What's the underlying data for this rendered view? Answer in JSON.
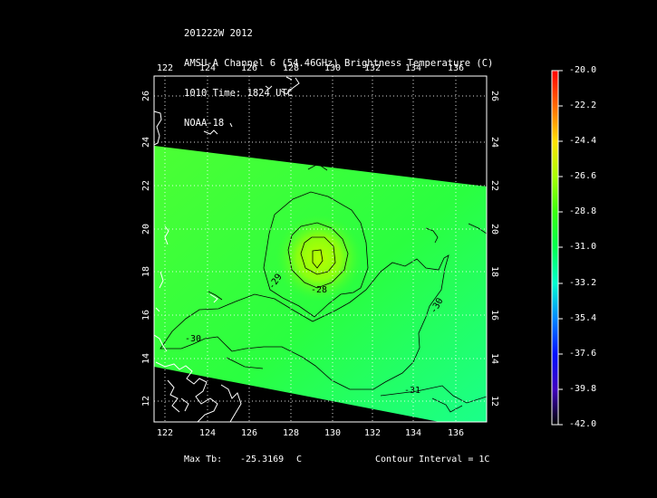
{
  "header": {
    "line1": "201222W 2012",
    "line2": "AMSU-A Channel 6 (54.46GHz) Brightness Temperature (C)",
    "line3": "1010 Time: 1824 UTC",
    "line4": "NOAA-18"
  },
  "map": {
    "lon_labels": [
      "122",
      "124",
      "126",
      "128",
      "130",
      "132",
      "134",
      "136"
    ],
    "lat_labels": [
      "12",
      "14",
      "16",
      "18",
      "20",
      "22",
      "24",
      "26"
    ],
    "contour_labels": [
      "-28",
      "-29",
      "-30",
      "-30",
      "-31"
    ]
  },
  "colorbar": {
    "labels": [
      "-20.0",
      "-22.2",
      "-24.4",
      "-26.6",
      "-28.8",
      "-31.0",
      "-33.2",
      "-35.4",
      "-37.6",
      "-39.8",
      "-42.0"
    ],
    "colors": [
      "#ff0000",
      "#ff6a00",
      "#ffe000",
      "#a8ff00",
      "#00ff40",
      "#00ffd0",
      "#0088ff",
      "#0010ff",
      "#4000c0",
      "#301060",
      "#000000"
    ]
  },
  "footer": {
    "max_label": "Max Tb:",
    "max_value": "-25.3169",
    "max_unit": "C",
    "contour": "Contour Interval = 1C"
  }
}
